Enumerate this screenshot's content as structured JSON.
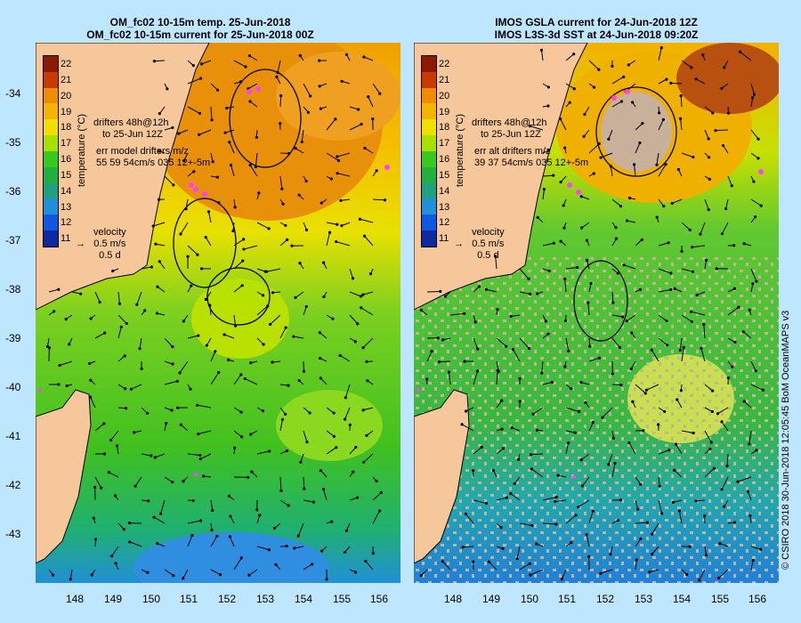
{
  "left_panel": {
    "title_line1": "OM_fc02 10-15m temp. 25-Jun-2018",
    "title_line2": "OM_fc02 10-15m current for 25-Jun-2018 00Z",
    "legend_line1": "drifters 48h@12h",
    "legend_line2": "to 25-Jun 12Z",
    "legend_line3": "err model drifters m/z",
    "legend_line4": "55 59 54cm/s 035 12+-5m",
    "velocity_label": "velocity",
    "velocity_scale": "0.5 m/s",
    "velocity_time": "0.5 d"
  },
  "right_panel": {
    "title_line1": "IMOS GSLA current for 24-Jun-2018 12Z",
    "title_line2": "IMOS L3S-3d SST at 24-Jun-2018 09:20Z",
    "legend_line1": "drifters 48h@12h",
    "legend_line2": "to 25-Jun 12Z",
    "legend_line3": "err alt drifters m/z",
    "legend_line4": "39 37 54cm/s 035 12+-5m",
    "velocity_label": "velocity",
    "velocity_scale": "0.5 m/s",
    "velocity_time": "0.5 d"
  },
  "colorbar": {
    "title": "temperature (°C)",
    "ticks": [
      "22",
      "21",
      "20",
      "19",
      "18",
      "17",
      "16",
      "15",
      "14",
      "13",
      "12",
      "11"
    ],
    "colors": [
      "#8b1a00",
      "#c83a00",
      "#f08c00",
      "#f5b400",
      "#f0e000",
      "#a8e000",
      "#38c820",
      "#20b040",
      "#20a080",
      "#2090d8",
      "#1058e0",
      "#1028a0"
    ]
  },
  "y_ticks": [
    "-34",
    "-35",
    "-36",
    "-37",
    "-38",
    "-39",
    "-40",
    "-41",
    "-42",
    "-43"
  ],
  "x_ticks": [
    "148",
    "149",
    "150",
    "151",
    "152",
    "153",
    "154",
    "155",
    "156"
  ],
  "credit": "© CSIRO 2018   30-Jun-2018 12:05:45 BoM OceanMAPS v3",
  "colors": {
    "land": "#f5c79a",
    "sea_bg": "#bfe6ff",
    "drifter": "#ff40ff",
    "missing": "#c8b09a"
  }
}
